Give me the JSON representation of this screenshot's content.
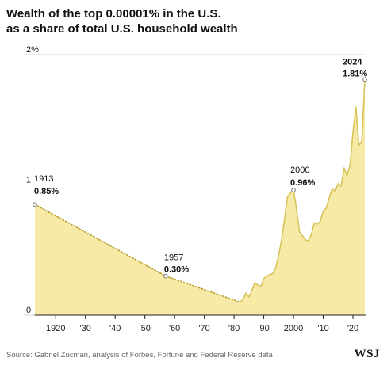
{
  "title_line1": "Wealth of the top 0.00001% in the U.S.",
  "title_line2": "as a share of total U.S. household wealth",
  "source": "Source: Gabriel Zucman, analysis of Forbes, Fortune and Federal Reserve data",
  "brand": "WSJ",
  "colors": {
    "fill": "#f7eaa6",
    "line": "#d8c35a",
    "dotted": "#b8a12e",
    "grid": "#cccccc",
    "axis": "#222222"
  },
  "chart_data": {
    "type": "area",
    "title": "Wealth of the top 0.00001% in the U.S. as a share of total U.S. household wealth",
    "xlabel": "",
    "ylabel": "",
    "xlim": [
      1913,
      2024
    ],
    "ylim": [
      0,
      2
    ],
    "x_ticks": [
      {
        "value": 1920,
        "label": "1920"
      },
      {
        "value": 1930,
        "label": "'30"
      },
      {
        "value": 1940,
        "label": "'40"
      },
      {
        "value": 1950,
        "label": "'50"
      },
      {
        "value": 1960,
        "label": "'60"
      },
      {
        "value": 1970,
        "label": "'70"
      },
      {
        "value": 1980,
        "label": "'80"
      },
      {
        "value": 1990,
        "label": "'90"
      },
      {
        "value": 2000,
        "label": "2000"
      },
      {
        "value": 2010,
        "label": "'10"
      },
      {
        "value": 2020,
        "label": "'20"
      }
    ],
    "y_ticks": [
      {
        "value": 0,
        "label": "0"
      },
      {
        "value": 1,
        "label": "1"
      },
      {
        "value": 2,
        "label": "2%"
      }
    ],
    "grid": true,
    "interpolated_segments": [
      [
        1913,
        1957
      ],
      [
        1957,
        1982
      ]
    ],
    "series": [
      {
        "x": [
          1913,
          1957,
          1982,
          1983,
          1984,
          1985,
          1986,
          1987,
          1988,
          1989,
          1990,
          1991,
          1992,
          1993,
          1994,
          1995,
          1996,
          1997,
          1998,
          1999,
          2000,
          2001,
          2002,
          2003,
          2004,
          2005,
          2006,
          2007,
          2008,
          2009,
          2010,
          2011,
          2012,
          2013,
          2014,
          2015,
          2016,
          2017,
          2018,
          2019,
          2020,
          2021,
          2022,
          2023,
          2024
        ],
        "y": [
          0.85,
          0.3,
          0.1,
          0.12,
          0.17,
          0.14,
          0.19,
          0.25,
          0.23,
          0.22,
          0.28,
          0.3,
          0.31,
          0.32,
          0.36,
          0.46,
          0.58,
          0.74,
          0.91,
          0.94,
          0.96,
          0.82,
          0.64,
          0.61,
          0.58,
          0.57,
          0.62,
          0.71,
          0.7,
          0.72,
          0.8,
          0.82,
          0.9,
          0.97,
          0.95,
          1.01,
          0.99,
          1.13,
          1.07,
          1.15,
          1.4,
          1.6,
          1.3,
          1.34,
          1.81
        ]
      }
    ],
    "annotations": [
      {
        "x": 1913,
        "y": 0.85,
        "year": "1913",
        "value": "0.85%"
      },
      {
        "x": 1957,
        "y": 0.3,
        "year": "1957",
        "value": "0.30%"
      },
      {
        "x": 2000,
        "y": 0.96,
        "year": "2000",
        "value": "0.96%"
      },
      {
        "x": 2024,
        "y": 1.81,
        "year": "2024",
        "value": "1.81%"
      }
    ]
  }
}
